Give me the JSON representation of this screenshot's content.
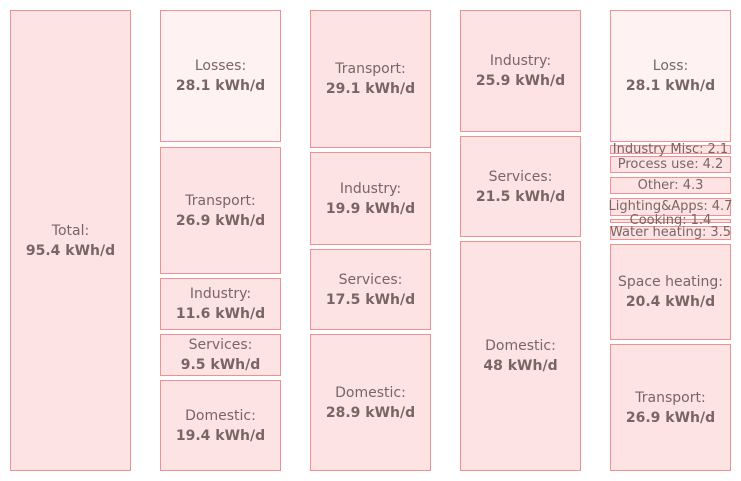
{
  "columns": [
    {
      "blocks": [
        {
          "label": "Total:",
          "value": "95.4 kWh/d",
          "pale": false
        }
      ]
    },
    {
      "blocks": [
        {
          "label": "Losses:",
          "value": "28.1 kWh/d",
          "pale": true
        },
        {
          "label": "Transport:",
          "value": "26.9 kWh/d",
          "pale": false
        },
        {
          "label": "Industry:",
          "value": "11.6 kWh/d",
          "pale": false
        },
        {
          "label": "Services:",
          "value": "9.5 kWh/d",
          "pale": false
        },
        {
          "label": "Domestic:",
          "value": "19.4 kWh/d",
          "pale": false
        }
      ]
    },
    {
      "blocks": [
        {
          "label": "Transport:",
          "value": "29.1 kWh/d",
          "pale": false
        },
        {
          "label": "Industry:",
          "value": "19.9 kWh/d",
          "pale": false
        },
        {
          "label": "Services:",
          "value": "17.5 kWh/d",
          "pale": false
        },
        {
          "label": "Domestic:",
          "value": "28.9 kWh/d",
          "pale": false
        }
      ]
    },
    {
      "blocks": [
        {
          "label": "Industry:",
          "value": "25.9 kWh/d",
          "pale": false
        },
        {
          "label": "Services:",
          "value": "21.5 kWh/d",
          "pale": false
        },
        {
          "label": "Domestic:",
          "value": "48 kWh/d",
          "pale": false
        }
      ]
    },
    {
      "blocks": [
        {
          "label": "Loss:",
          "value": "28.1 kWh/d",
          "pale": true
        },
        {
          "label": "Industry Misc:",
          "value": "2.1",
          "pale": false
        },
        {
          "label": "Process use:",
          "value": "4.2",
          "pale": false
        },
        {
          "label": "Other:",
          "value": "4.3",
          "pale": false
        },
        {
          "label": "Lighting&Apps:",
          "value": "4.7",
          "pale": false
        },
        {
          "label": "Cooking:",
          "value": "1.4",
          "pale": false
        },
        {
          "label": "Water heating:",
          "value": "3.5",
          "pale": false
        },
        {
          "label": "Space heating:",
          "value": "20.4 kWh/d",
          "pale": false
        },
        {
          "label": "Transport:",
          "value": "26.9 kWh/d",
          "pale": false
        }
      ]
    }
  ]
}
